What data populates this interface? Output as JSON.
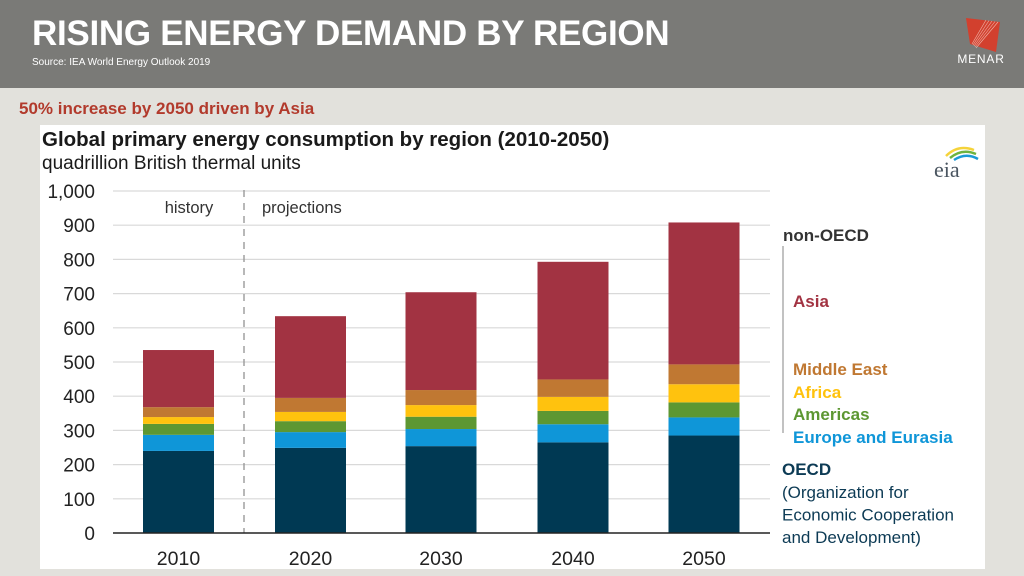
{
  "header": {
    "title": "RISING ENERGY DEMAND BY REGION",
    "source": "Source: IEA World Energy Outlook 2019",
    "logo_text": "MENAR",
    "logo_icon": "menar-logo-icon"
  },
  "subtitle": "50% increase by 2050 driven by Asia",
  "colors": {
    "header_bg": "#7a7a77",
    "accent_red": "#b23a2c",
    "asia": "#a23342",
    "middle_east": "#c07832",
    "africa": "#ffc20e",
    "americas": "#5d9732",
    "europe_eurasia": "#0f96d8",
    "oecd": "#003953"
  },
  "chart_data": {
    "type": "bar",
    "stacked": true,
    "title": "Global primary energy consumption by region (2010-2050)",
    "subtitle": "quadrillion British thermal units",
    "source_logo": "eia",
    "xlabel": "",
    "ylabel": "quadrillion British thermal units",
    "ylim": [
      0,
      1000
    ],
    "yticks": [
      0,
      100,
      200,
      300,
      400,
      500,
      600,
      700,
      800,
      900,
      1000
    ],
    "ytick_labels": [
      "0",
      "100",
      "200",
      "300",
      "400",
      "500",
      "600",
      "700",
      "800",
      "900",
      "1,000"
    ],
    "grid": true,
    "categories": [
      "2010",
      "2020",
      "2030",
      "2040",
      "2050"
    ],
    "annotations": [
      {
        "text": "history",
        "region": "2010"
      },
      {
        "text": "projections",
        "region": "2020-2050"
      }
    ],
    "series": [
      {
        "name": "OECD",
        "group": "OECD",
        "color": "#003953",
        "values": [
          240,
          249,
          254,
          265,
          285
        ]
      },
      {
        "name": "Europe and Eurasia",
        "group": "non-OECD",
        "color": "#0f96d8",
        "values": [
          47,
          46,
          50,
          53,
          53
        ]
      },
      {
        "name": "Americas",
        "group": "non-OECD",
        "color": "#5d9732",
        "values": [
          32,
          32,
          36,
          39,
          44
        ]
      },
      {
        "name": "Africa",
        "group": "non-OECD",
        "color": "#ffc20e",
        "values": [
          20,
          27,
          34,
          41,
          53
        ]
      },
      {
        "name": "Middle East",
        "group": "non-OECD",
        "color": "#c07832",
        "values": [
          29,
          41,
          44,
          51,
          58
        ]
      },
      {
        "name": "Asia",
        "group": "non-OECD",
        "color": "#a23342",
        "values": [
          167,
          239,
          286,
          344,
          415
        ]
      }
    ],
    "legend": {
      "placement": "right",
      "non_oecd_label": "non-OECD",
      "items": [
        "Asia",
        "Middle East",
        "Africa",
        "Americas",
        "Europe and Eurasia"
      ],
      "oecd_label": "OECD",
      "oecd_description": [
        "(Organization for",
        "Economic Cooperation",
        "and Development)"
      ]
    }
  }
}
